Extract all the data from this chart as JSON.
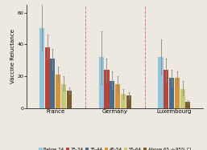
{
  "countries": [
    "France",
    "Germany",
    "Luxembourg"
  ],
  "age_groups": [
    "Below 24",
    "25-34",
    "35-44",
    "45-54",
    "55-64",
    "Above 65"
  ],
  "colors": [
    "#92c5de",
    "#b5443a",
    "#4a6b8a",
    "#d4943a",
    "#c8c87a",
    "#7a5c28"
  ],
  "bar_values": {
    "France": [
      50,
      38,
      31,
      21,
      15,
      11
    ],
    "Germany": [
      32,
      24,
      17,
      15,
      9,
      8
    ],
    "Luxembourg": [
      32,
      24,
      19,
      19,
      12,
      4
    ]
  },
  "ci_low": {
    "France": [
      14,
      7,
      7,
      4,
      4,
      2
    ],
    "Germany": [
      17,
      7,
      5,
      5,
      3,
      2
    ],
    "Luxembourg": [
      11,
      7,
      5,
      5,
      4,
      1
    ]
  },
  "ci_high": {
    "France": [
      16,
      8,
      6,
      5,
      5,
      2
    ],
    "Germany": [
      16,
      7,
      6,
      5,
      3,
      2
    ],
    "Luxembourg": [
      11,
      7,
      5,
      4,
      5,
      1
    ]
  },
  "ylabel": "Vaccine Reluctance",
  "ylim": [
    0,
    65
  ],
  "yticks": [
    0,
    20,
    40,
    60
  ],
  "background_color": "#ede8e0",
  "dashed_color": "#d46070",
  "axis_fontsize": 5.0,
  "legend_fontsize": 4.0,
  "tick_fontsize": 4.5,
  "ylabel_fontsize": 5.0
}
